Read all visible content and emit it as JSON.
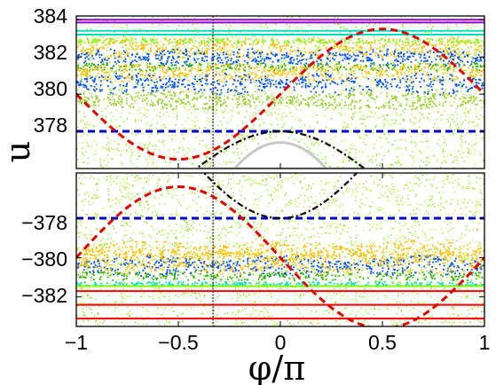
{
  "chart_data": [
    {
      "type": "scatter",
      "title": "",
      "xlabel": "",
      "ylabel": "u",
      "xlim": [
        -1,
        1
      ],
      "ylim": [
        376,
        384.2
      ],
      "yticks": [
        "384",
        "382",
        "380",
        "378"
      ],
      "grid": false,
      "legend": "none",
      "bands": [
        {
          "color": "#9400D3",
          "type": "lines",
          "values": [
            384.0,
            383.85
          ]
        },
        {
          "color": "#00E0C0",
          "type": "lines",
          "values": [
            383.4,
            383.2
          ]
        },
        {
          "color": "#7CFC00",
          "type": "chain",
          "center": 382.9,
          "amp": 0.12,
          "periods": 16
        },
        {
          "color": "#FFC000",
          "type": "islands",
          "center": 382.5,
          "amp": 0.55,
          "periods": 6
        },
        {
          "color": "#0050FF",
          "type": "islands",
          "center": 382.0,
          "amp": 0.5,
          "periods": 6
        },
        {
          "color": "#30B000",
          "type": "chain",
          "center": 381.5,
          "amp": 0.2,
          "periods": 9
        },
        {
          "color": "#FFC000",
          "type": "islands",
          "center": 381.2,
          "amp": 0.5,
          "periods": 4
        },
        {
          "color": "#0050FF",
          "type": "islands",
          "center": 380.6,
          "amp": 0.6,
          "periods": 4
        },
        {
          "color": "#9ACD32",
          "type": "islands",
          "center": 379.7,
          "amp": 0.5,
          "periods": 2
        }
      ],
      "separatrix_black": {
        "peak": 378.0,
        "min": 372.5
      },
      "red_curve": {
        "mean": 380.0,
        "amp": 3.5,
        "phase_peak": 0.5
      },
      "blue_line": 378.0,
      "white_region": {
        "peak": 377.4
      },
      "vertical_marker_x": -0.33
    },
    {
      "type": "scatter",
      "title": "",
      "xlabel": "φ/π",
      "ylabel": "",
      "xlim": [
        -1,
        1
      ],
      "ylim": [
        -383.5,
        -375.7
      ],
      "xticks": [
        "−1",
        "−0.5",
        "0",
        "0.5",
        "1"
      ],
      "yticks": [
        "−378",
        "−380",
        "−382"
      ],
      "grid": false,
      "legend": "none",
      "bands": [
        {
          "color": "#FFC000",
          "type": "islands",
          "center": -379.6,
          "amp": 0.5,
          "periods": 3
        },
        {
          "color": "#0050FF",
          "type": "islands",
          "center": -380.4,
          "amp": 0.55,
          "periods": 3
        },
        {
          "color": "#FFC000",
          "type": "islands",
          "center": -380.2,
          "amp": 0.6,
          "periods": 4
        },
        {
          "color": "#30B000",
          "type": "chain",
          "center": -380.9,
          "amp": 0.22,
          "periods": 9
        },
        {
          "color": "#00E0C0",
          "type": "chain",
          "center": -381.3,
          "amp": 0.1,
          "periods": 14
        },
        {
          "color": "#7CFC00",
          "type": "lines",
          "values": [
            -381.45
          ]
        },
        {
          "color": "#FF0000",
          "type": "lines",
          "values": [
            -381.7,
            -382.4,
            -383.1
          ]
        }
      ],
      "separatrix_black": {
        "peak": -378.0,
        "min": -370.5
      },
      "red_curve": {
        "mean": -380.0,
        "amp": 3.6,
        "phase_peak": -0.5
      },
      "blue_line": -378.0,
      "vertical_marker_x": -0.33
    }
  ]
}
